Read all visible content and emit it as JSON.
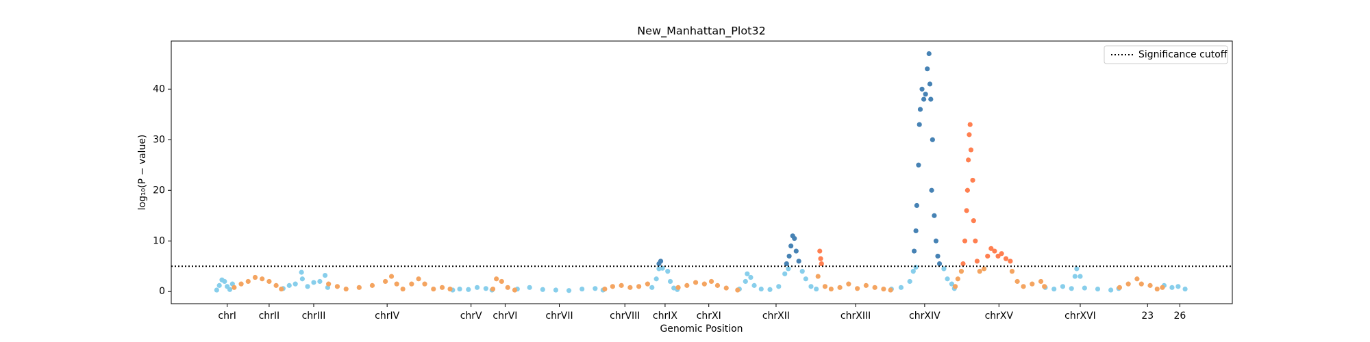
{
  "chart_data": {
    "type": "scatter",
    "title": "New_Manhattan_Plot32",
    "x_label": "Genomic Position",
    "y_label": "log₁₀(P − value)",
    "xlim": [
      0,
      1214
    ],
    "ylim": [
      -2.4,
      49.5
    ],
    "yticks": [
      0,
      10,
      20,
      30,
      40
    ],
    "xticks": [
      {
        "value": 64,
        "label": "chrI"
      },
      {
        "value": 112,
        "label": "chrII"
      },
      {
        "value": 163,
        "label": "chrIII"
      },
      {
        "value": 247,
        "label": "chrIV"
      },
      {
        "value": 343,
        "label": "chrV"
      },
      {
        "value": 382,
        "label": "chrVI"
      },
      {
        "value": 444,
        "label": "chrVII"
      },
      {
        "value": 519,
        "label": "chrVIII"
      },
      {
        "value": 565,
        "label": "chrIX"
      },
      {
        "value": 615,
        "label": "chrXI"
      },
      {
        "value": 692,
        "label": "chrXII"
      },
      {
        "value": 783,
        "label": "chrXIII"
      },
      {
        "value": 862,
        "label": "chrXIV"
      },
      {
        "value": 947,
        "label": "chrXV"
      },
      {
        "value": 1040,
        "label": "chrXVI"
      },
      {
        "value": 1117,
        "label": "23"
      },
      {
        "value": 1154,
        "label": "26"
      }
    ],
    "cutoff": {
      "label": "Significance cutoff",
      "value": 5,
      "color": "#000000"
    },
    "legend_position": "upper right",
    "series": [
      {
        "color": "#87ceeb",
        "x": [
          52,
          55,
          58,
          61,
          64,
          67,
          70,
          128,
          135,
          142,
          149,
          150,
          156,
          163,
          170,
          176,
          179,
          322,
          330,
          340,
          350,
          360,
          367,
          396,
          410,
          425,
          440,
          455,
          470,
          485,
          494,
          550,
          555,
          558,
          562,
          568,
          571,
          575,
          579,
          650,
          657,
          659,
          663,
          667,
          675,
          685,
          695,
          702,
          706,
          722,
          726,
          732,
          738,
          824,
          835,
          845,
          849,
          852,
          884,
          888,
          893,
          896,
          1000,
          1010,
          1020,
          1030,
          1034,
          1036,
          1040,
          1045,
          1060,
          1075,
          1084,
          1136,
          1145,
          1152,
          1160
        ],
        "values": [
          0.3,
          1.2,
          2.3,
          2.0,
          1.0,
          0.4,
          1.5,
          0.6,
          1.2,
          1.5,
          3.8,
          2.5,
          1.0,
          1.8,
          2.0,
          3.2,
          0.8,
          0.3,
          0.5,
          0.4,
          0.8,
          0.6,
          0.3,
          0.5,
          0.8,
          0.4,
          0.3,
          0.2,
          0.5,
          0.6,
          0.3,
          0.8,
          2.5,
          4.5,
          4.6,
          4.0,
          2.0,
          0.7,
          0.4,
          0.5,
          2.0,
          3.5,
          2.8,
          1.2,
          0.5,
          0.4,
          1.0,
          3.5,
          4.5,
          4.0,
          2.5,
          1.0,
          0.5,
          0.5,
          0.8,
          2.0,
          4.0,
          4.8,
          4.5,
          2.5,
          1.5,
          0.6,
          0.8,
          0.5,
          1.0,
          0.6,
          3.0,
          4.5,
          3.0,
          0.7,
          0.5,
          0.3,
          0.6,
          1.2,
          0.8,
          1.0,
          0.5
        ]
      },
      {
        "color": "#f4a460",
        "x": [
          72,
          80,
          88,
          96,
          104,
          112,
          120,
          126,
          180,
          190,
          200,
          215,
          230,
          245,
          252,
          258,
          265,
          275,
          283,
          290,
          300,
          310,
          319,
          368,
          372,
          378,
          385,
          393,
          496,
          505,
          515,
          525,
          535,
          545,
          580,
          590,
          600,
          610,
          618,
          625,
          635,
          648,
          740,
          748,
          755,
          765,
          775,
          785,
          795,
          805,
          815,
          823,
          897,
          900,
          904,
          925,
          930,
          962,
          968,
          975,
          985,
          995,
          999,
          1085,
          1095,
          1105,
          1110,
          1120,
          1128,
          1134
        ],
        "values": [
          0.8,
          1.5,
          2.0,
          2.8,
          2.5,
          2.0,
          1.2,
          0.5,
          1.5,
          1.0,
          0.5,
          0.8,
          1.2,
          2.0,
          3.0,
          1.5,
          0.5,
          1.5,
          2.5,
          1.5,
          0.5,
          0.8,
          0.5,
          0.5,
          2.5,
          2.0,
          0.8,
          0.3,
          0.5,
          1.0,
          1.2,
          0.8,
          1.0,
          1.5,
          0.8,
          1.2,
          1.8,
          1.5,
          2.0,
          1.2,
          0.7,
          0.3,
          3.0,
          1.0,
          0.5,
          0.8,
          1.5,
          0.6,
          1.2,
          0.8,
          0.5,
          0.3,
          1.0,
          2.5,
          4.0,
          4.0,
          4.5,
          4.0,
          2.0,
          1.0,
          1.5,
          2.0,
          1.0,
          0.8,
          1.5,
          2.5,
          1.5,
          1.2,
          0.5,
          0.8
        ]
      },
      {
        "color": "#4682b4",
        "x": [
          558,
          560,
          704,
          707,
          709,
          711,
          713,
          715,
          718,
          850,
          852,
          853,
          855,
          856,
          857,
          859,
          861,
          863,
          865,
          867,
          868,
          869,
          870,
          871,
          873,
          875,
          877,
          879
        ],
        "values": [
          5.5,
          6.0,
          5.5,
          7,
          9,
          11,
          10.5,
          8,
          6,
          8,
          12,
          17,
          25,
          33,
          36,
          40,
          38,
          39,
          44,
          47,
          41,
          38,
          20,
          30,
          15,
          10,
          7,
          5.5
        ]
      },
      {
        "color": "#ff7f50",
        "x": [
          742,
          743,
          744,
          906,
          908,
          910,
          911,
          912,
          913,
          914,
          915,
          917,
          918,
          920,
          922,
          934,
          938,
          942,
          946,
          950,
          955,
          960
        ],
        "values": [
          8,
          6.5,
          5.5,
          5.5,
          10,
          16,
          20,
          26,
          31,
          33,
          28,
          22,
          14,
          10,
          6,
          7,
          8.5,
          8,
          7,
          7.5,
          6.5,
          6
        ]
      }
    ]
  }
}
